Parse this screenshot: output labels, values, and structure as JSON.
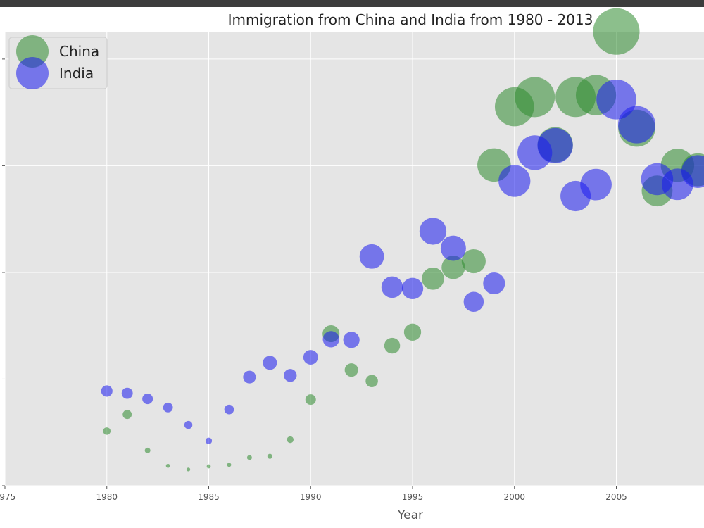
{
  "chart_data": {
    "type": "scatter",
    "title": "Immigration from China and India from 1980 - 2013",
    "xlabel": "Year",
    "ylabel": "",
    "xlim": [
      1975,
      2009.3
    ],
    "ylim": [
      0,
      42500
    ],
    "grid": true,
    "legend_position": "top-left",
    "x_ticks": [
      1975,
      1980,
      1985,
      1990,
      1995,
      2000,
      2005
    ],
    "x_tick_labels": [
      "1975",
      "1980",
      "1985",
      "1990",
      "1995",
      "2000",
      "2005"
    ],
    "y_ticks": [
      0,
      10000,
      20000,
      30000,
      40000
    ],
    "series": [
      {
        "name": "China",
        "color": "#2e8b2e",
        "x": [
          1980,
          1981,
          1982,
          1983,
          1984,
          1985,
          1986,
          1987,
          1988,
          1989,
          1990,
          1991,
          1992,
          1993,
          1994,
          1995,
          1996,
          1997,
          1998,
          1999,
          2000,
          2001,
          2002,
          2003,
          2004,
          2005,
          2006,
          2007,
          2008,
          2009
        ],
        "y": [
          5123,
          6682,
          3308,
          1863,
          1527,
          1816,
          1960,
          2643,
          2758,
          4323,
          8076,
          14255,
          10846,
          9817,
          13128,
          14398,
          19415,
          20475,
          21049,
          30069,
          35529,
          36434,
          31961,
          36439,
          36619,
          42584,
          33518,
          27642,
          30037,
          29622
        ]
      },
      {
        "name": "India",
        "color": "#1a1aee",
        "x": [
          1980,
          1981,
          1982,
          1983,
          1984,
          1985,
          1986,
          1987,
          1988,
          1989,
          1990,
          1991,
          1992,
          1993,
          1994,
          1995,
          1996,
          1997,
          1998,
          1999,
          2000,
          2001,
          2002,
          2003,
          2004,
          2005,
          2006,
          2007,
          2008,
          2009
        ],
        "y": [
          8880,
          8670,
          8147,
          7338,
          5704,
          4211,
          7150,
          10189,
          11522,
          10343,
          12041,
          13734,
          13673,
          21496,
          18620,
          18489,
          23859,
          22268,
          17241,
          18974,
          28572,
          31223,
          31889,
          27155,
          28235,
          36210,
          33848,
          28742,
          28261,
          29456
        ]
      }
    ]
  }
}
